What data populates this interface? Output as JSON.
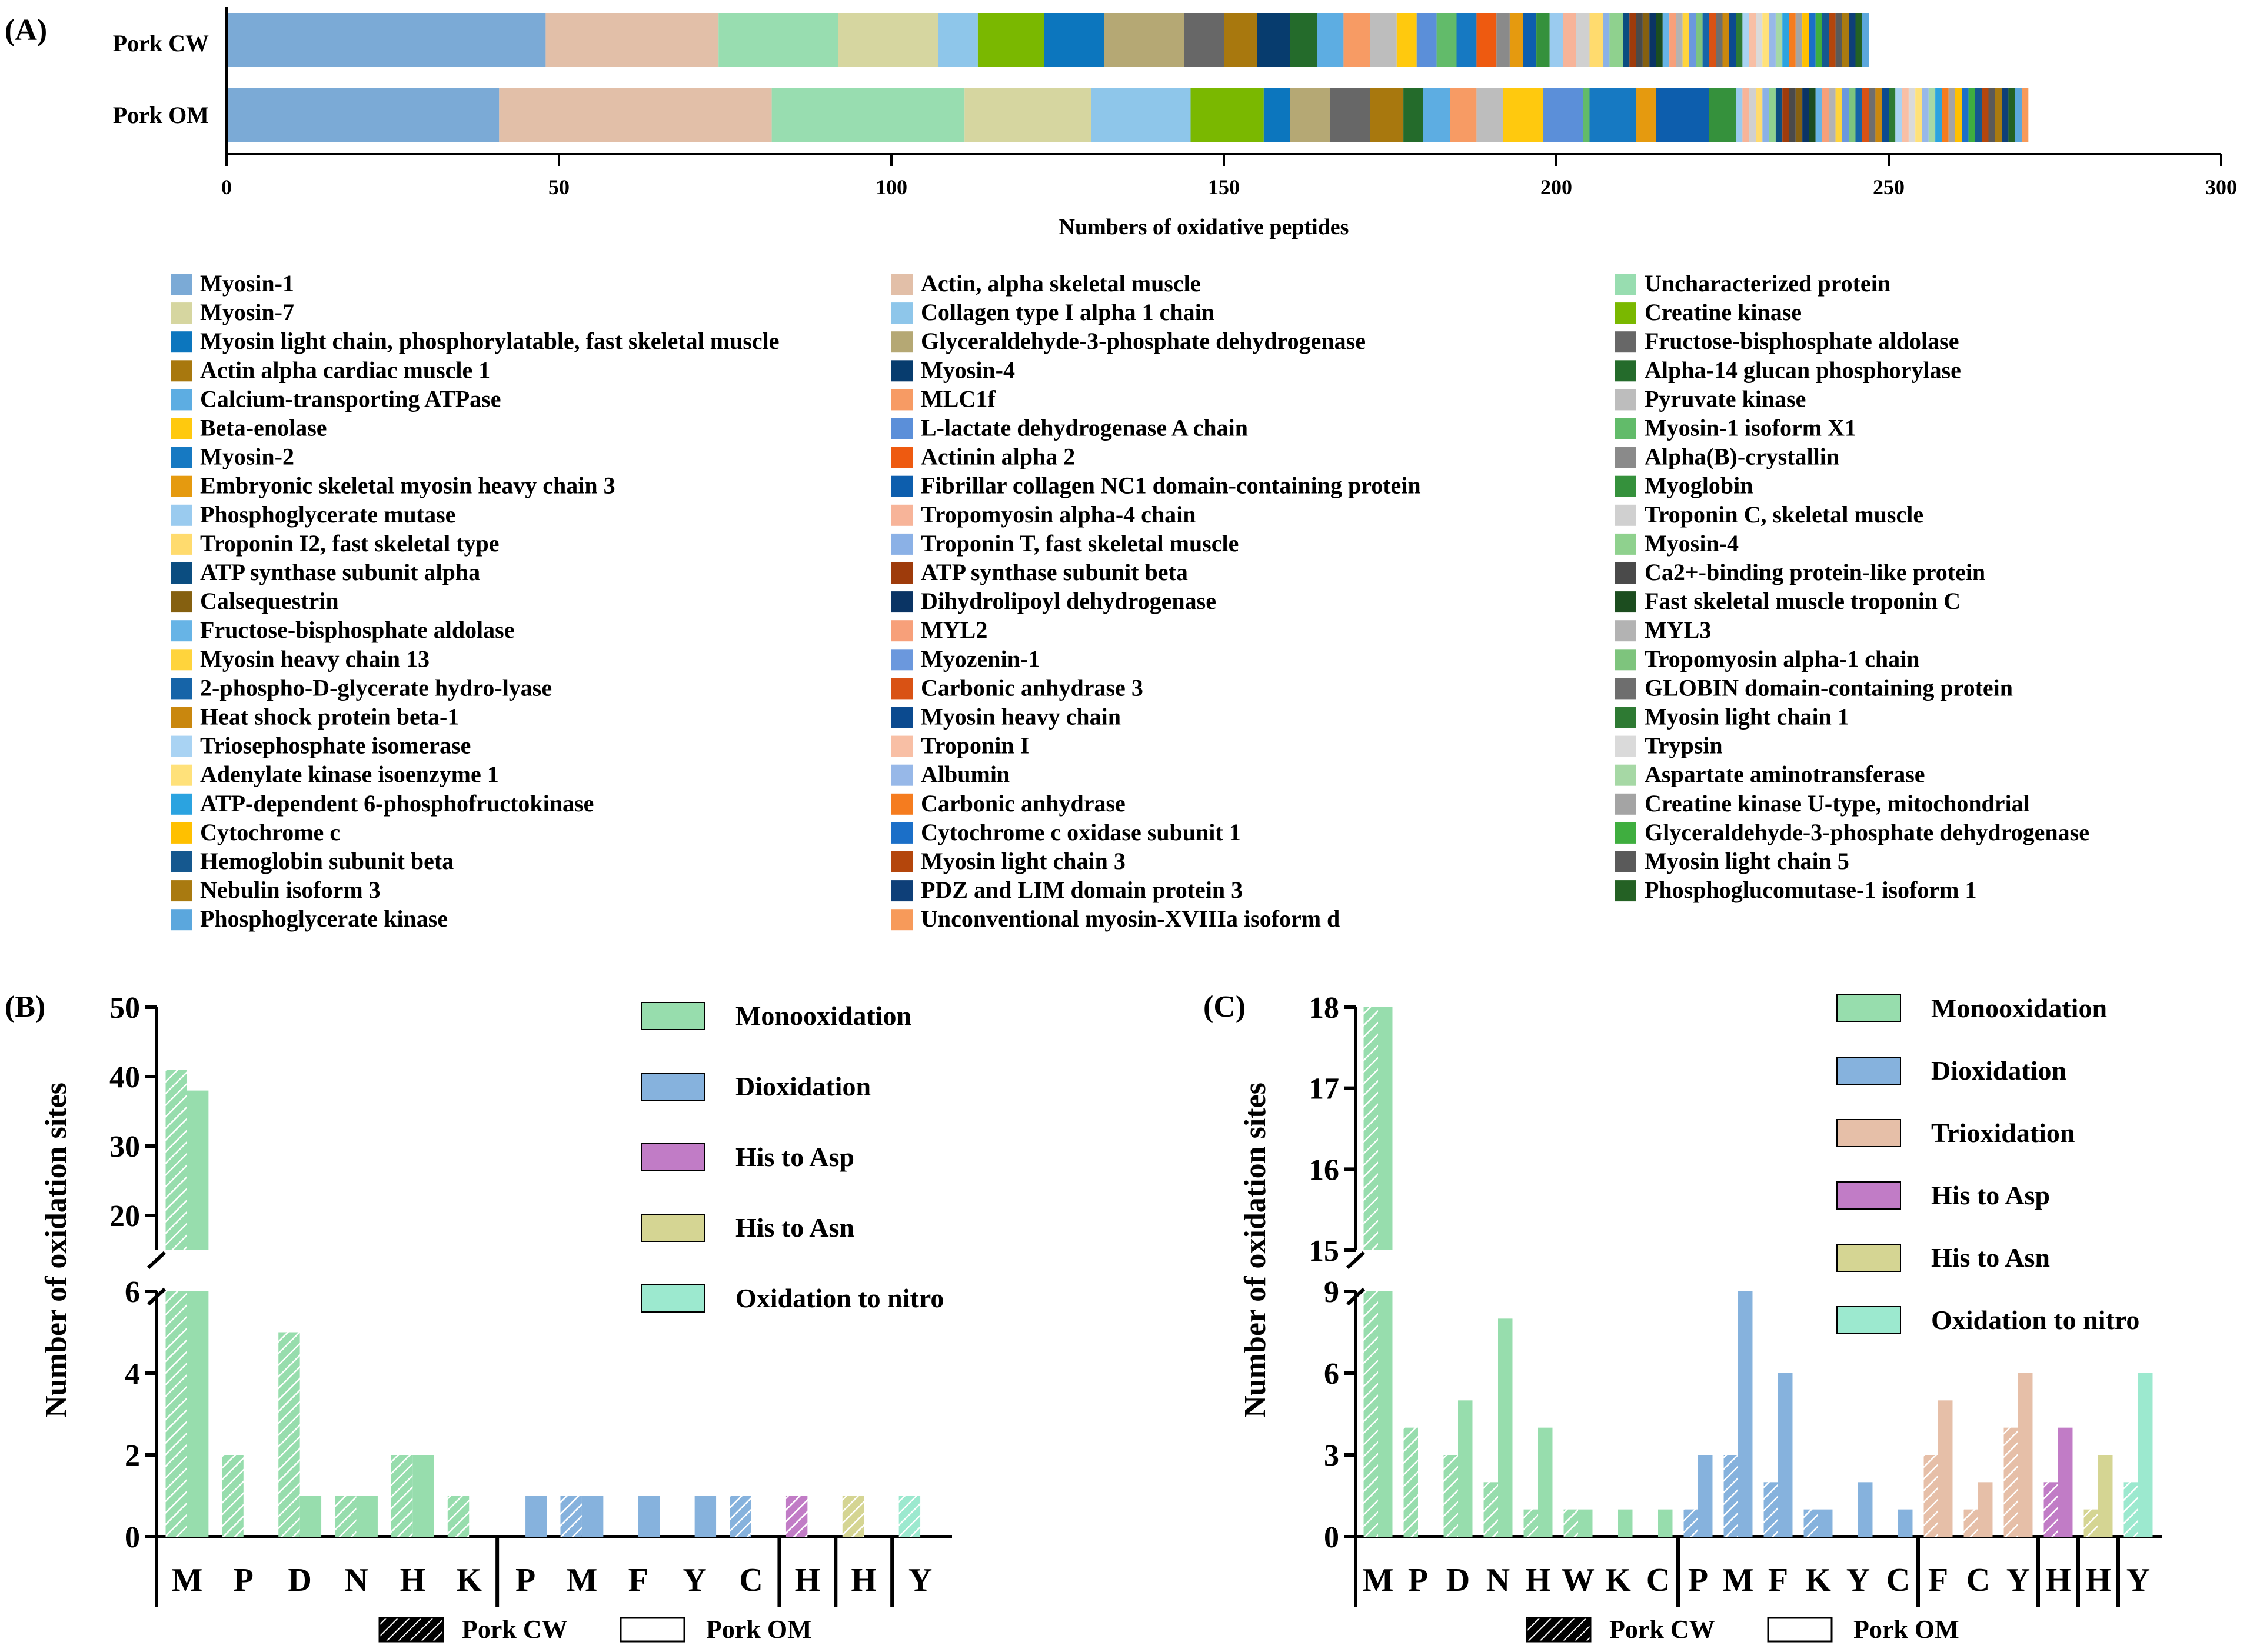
{
  "chart_data": [
    {
      "type": "bar",
      "orientation": "horizontal",
      "stacked": true,
      "panel_label": "(A)",
      "categories": [
        "Pork CW",
        "Pork OM"
      ],
      "xlabel": "Numbers of oxidative peptides",
      "ylabel": "",
      "xlim": [
        0,
        300
      ],
      "xticks": [
        "0",
        "50",
        "100",
        "150",
        "200",
        "250",
        "300"
      ],
      "legend_position": "below",
      "series": [
        {
          "name": "Myosin-1",
          "color": "#7BAAD6",
          "values": [
            48,
            41
          ]
        },
        {
          "name": "Actin, alpha skeletal muscle",
          "color": "#E2BFA8",
          "values": [
            26,
            41
          ]
        },
        {
          "name": "Uncharacterized protein",
          "color": "#98DDB0",
          "values": [
            18,
            29
          ]
        },
        {
          "name": "Myosin-7",
          "color": "#D6D6A0",
          "values": [
            15,
            19
          ]
        },
        {
          "name": "Collagen type I alpha 1 chain",
          "color": "#8EC6EA",
          "values": [
            6,
            15
          ]
        },
        {
          "name": "Creatine kinase",
          "color": "#7AB800",
          "values": [
            10,
            11
          ]
        },
        {
          "name": "Myosin light chain, phosphorylatable, fast skeletal muscle",
          "color": "#0C76BE",
          "values": [
            9,
            4
          ]
        },
        {
          "name": "Glyceraldehyde-3-phosphate dehydrogenase",
          "color": "#B5A874",
          "values": [
            12,
            6
          ]
        },
        {
          "name": "Fructose-bisphosphate aldolase",
          "color": "#676767",
          "values": [
            6,
            6
          ]
        },
        {
          "name": "Actin alpha cardiac muscle 1",
          "color": "#A8780E",
          "values": [
            5,
            5
          ]
        },
        {
          "name": "Myosin-4",
          "color": "#073C6E",
          "values": [
            5,
            0
          ]
        },
        {
          "name": "Alpha-14 glucan phosphorylase",
          "color": "#246B2B",
          "values": [
            4,
            3
          ]
        },
        {
          "name": "Calcium-transporting ATPase",
          "color": "#5DADE2",
          "values": [
            4,
            4
          ]
        },
        {
          "name": "MLC1f",
          "color": "#F79B64",
          "values": [
            4,
            4
          ]
        },
        {
          "name": "Pyruvate kinase",
          "color": "#BDBDBD",
          "values": [
            4,
            4
          ]
        },
        {
          "name": "Beta-enolase",
          "color": "#FFC90E",
          "values": [
            3,
            6
          ]
        },
        {
          "name": "L-lactate dehydrogenase A chain",
          "color": "#5B8FD9",
          "values": [
            3,
            6
          ]
        },
        {
          "name": "Myosin-1 isoform X1",
          "color": "#62BB6A",
          "values": [
            3,
            1
          ]
        },
        {
          "name": "Myosin-2",
          "color": "#1679C2",
          "values": [
            3,
            7
          ]
        },
        {
          "name": "Actinin alpha 2",
          "color": "#EE5A10",
          "values": [
            3,
            0
          ]
        },
        {
          "name": "Alpha(B)-crystallin",
          "color": "#8A8A8A",
          "values": [
            2,
            0
          ]
        },
        {
          "name": "Embryonic skeletal myosin heavy chain 3",
          "color": "#E59A0F",
          "values": [
            2,
            3
          ]
        },
        {
          "name": "Fibrillar collagen NC1 domain-containing protein",
          "color": "#0D5EAD",
          "values": [
            2,
            8
          ]
        },
        {
          "name": "Myoglobin",
          "color": "#35913C",
          "values": [
            2,
            4
          ]
        },
        {
          "name": "Phosphoglycerate mutase",
          "color": "#9ACBEF",
          "values": [
            2,
            1
          ]
        },
        {
          "name": "Tropomyosin alpha-4 chain",
          "color": "#F7B499",
          "values": [
            2,
            1
          ]
        },
        {
          "name": "Troponin C, skeletal muscle",
          "color": "#D0D0D0",
          "values": [
            2,
            1
          ]
        },
        {
          "name": "Troponin I2, fast skeletal type",
          "color": "#FFDB6E",
          "values": [
            2,
            1
          ]
        },
        {
          "name": "Troponin T, fast skeletal muscle",
          "color": "#8BB1E6",
          "values": [
            1,
            1
          ]
        },
        {
          "name": "Myosin-4",
          "color": "#8FD18E",
          "values": [
            2,
            1
          ]
        },
        {
          "name": "ATP synthase subunit alpha",
          "color": "#0B4D80",
          "values": [
            1,
            1
          ]
        },
        {
          "name": "ATP synthase subunit beta",
          "color": "#9E3B0B",
          "values": [
            1,
            1
          ]
        },
        {
          "name": "Ca2+-binding protein-like protein",
          "color": "#4A4A4A",
          "values": [
            1,
            1
          ]
        },
        {
          "name": "Calsequestrin",
          "color": "#856010",
          "values": [
            1,
            1
          ]
        },
        {
          "name": "Dihydrolipoyl dehydrogenase",
          "color": "#0A3464",
          "values": [
            1,
            1
          ]
        },
        {
          "name": "Fast skeletal muscle troponin C",
          "color": "#1C4D1F",
          "values": [
            1,
            1
          ]
        },
        {
          "name": "Fructose-bisphosphate aldolase",
          "color": "#67B4E6",
          "values": [
            1,
            1
          ]
        },
        {
          "name": "MYL2",
          "color": "#F7A07A",
          "values": [
            1,
            1
          ]
        },
        {
          "name": "MYL3",
          "color": "#B3B3B3",
          "values": [
            1,
            1
          ]
        },
        {
          "name": "Myosin heavy chain 13",
          "color": "#FFD43C",
          "values": [
            1,
            1
          ]
        },
        {
          "name": "Myozenin-1",
          "color": "#6B98DD",
          "values": [
            1,
            1
          ]
        },
        {
          "name": "Tropomyosin alpha-1 chain",
          "color": "#7EC47D",
          "values": [
            1,
            1
          ]
        },
        {
          "name": "2-phospho-D-glycerate hydro-lyase",
          "color": "#1664A8",
          "values": [
            1,
            1
          ]
        },
        {
          "name": "Carbonic anhydrase 3",
          "color": "#D95214",
          "values": [
            1,
            1
          ]
        },
        {
          "name": "GLOBIN domain-containing protein",
          "color": "#6E6E6E",
          "values": [
            1,
            1
          ]
        },
        {
          "name": "Heat shock protein beta-1",
          "color": "#C9870E",
          "values": [
            1,
            1
          ]
        },
        {
          "name": "Myosin heavy chain",
          "color": "#0B4A8F",
          "values": [
            1,
            1
          ]
        },
        {
          "name": "Myosin light chain 1",
          "color": "#2E7A33",
          "values": [
            1,
            1
          ]
        },
        {
          "name": "Triosephosphate isomerase",
          "color": "#A9D3F3",
          "values": [
            1,
            1
          ]
        },
        {
          "name": "Troponin I",
          "color": "#F8BFA5",
          "values": [
            1,
            1
          ]
        },
        {
          "name": "Trypsin",
          "color": "#DADADA",
          "values": [
            1,
            1
          ]
        },
        {
          "name": "Adenylate kinase isoenzyme 1",
          "color": "#FFE17A",
          "values": [
            1,
            1
          ]
        },
        {
          "name": "Albumin",
          "color": "#97B8E8",
          "values": [
            1,
            1
          ]
        },
        {
          "name": "Aspartate aminotransferase",
          "color": "#A6D8A5",
          "values": [
            1,
            1
          ]
        },
        {
          "name": "ATP-dependent 6-phosphofructokinase",
          "color": "#2BA3E0",
          "values": [
            1,
            1
          ]
        },
        {
          "name": "Carbonic anhydrase",
          "color": "#F57C1F",
          "values": [
            1,
            1
          ]
        },
        {
          "name": "Creatine kinase U-type, mitochondrial",
          "color": "#A4A4A4",
          "values": [
            1,
            1
          ]
        },
        {
          "name": "Cytochrome c",
          "color": "#FFC000",
          "values": [
            1,
            1
          ]
        },
        {
          "name": "Cytochrome c oxidase subunit 1",
          "color": "#1B6FC8",
          "values": [
            1,
            1
          ]
        },
        {
          "name": "Glyceraldehyde-3-phosphate dehydrogenase",
          "color": "#3FAE3F",
          "values": [
            1,
            1
          ]
        },
        {
          "name": "Hemoglobin subunit beta",
          "color": "#15588F",
          "values": [
            1,
            1
          ]
        },
        {
          "name": "Myosin light chain 3",
          "color": "#B4460C",
          "values": [
            1,
            1
          ]
        },
        {
          "name": "Myosin light chain 5",
          "color": "#5A5A5A",
          "values": [
            1,
            1
          ]
        },
        {
          "name": "Nebulin isoform 3",
          "color": "#A97A10",
          "values": [
            1,
            1
          ]
        },
        {
          "name": "PDZ and LIM domain protein 3",
          "color": "#0E3F78",
          "values": [
            1,
            1
          ]
        },
        {
          "name": "Phosphoglucomutase-1 isoform 1",
          "color": "#246124",
          "values": [
            1,
            1
          ]
        },
        {
          "name": "Phosphoglycerate kinase",
          "color": "#5BA7DD",
          "values": [
            1,
            1
          ]
        },
        {
          "name": "Unconventional myosin-XVIIIa isoform d",
          "color": "#F79A5A",
          "values": [
            0,
            1
          ]
        }
      ]
    },
    {
      "type": "bar",
      "panel_label": "(B)",
      "ylabel": "Number of  oxidation sites",
      "y_break": true,
      "ylim_lower": [
        0,
        6
      ],
      "ylim_upper": [
        15,
        50
      ],
      "yticks_lower": [
        "0",
        "2",
        "4",
        "6"
      ],
      "yticks_upper": [
        "20",
        "30",
        "40",
        "50"
      ],
      "categories": [
        "M",
        "P",
        "D",
        "N",
        "H",
        "K",
        "P",
        "M",
        "F",
        "Y",
        "C",
        "H",
        "H",
        "Y"
      ],
      "category_type": [
        "Monooxidation",
        "Monooxidation",
        "Monooxidation",
        "Monooxidation",
        "Monooxidation",
        "Monooxidation",
        "Dioxidation",
        "Dioxidation",
        "Dioxidation",
        "Dioxidation",
        "Dioxidation",
        "His to Asp",
        "His to Asn",
        "Oxidation to nitro"
      ],
      "group_breaks_after": [
        5,
        10,
        11,
        12
      ],
      "series": [
        {
          "name": "Pork CW",
          "pattern": "hatched",
          "values": [
            41,
            2,
            5,
            1,
            2,
            1,
            0,
            1,
            0,
            0,
            1,
            1,
            1,
            1
          ]
        },
        {
          "name": "Pork OM",
          "pattern": "solid",
          "values": [
            38,
            0,
            1,
            1,
            2,
            0,
            1,
            1,
            1,
            1,
            0,
            0,
            0,
            0
          ]
        }
      ],
      "legend_types": [
        {
          "name": "Monooxidation",
          "color": "#97DDAD"
        },
        {
          "name": "Dioxidation",
          "color": "#86B2DD"
        },
        {
          "name": "His to Asp",
          "color": "#C17CC6"
        },
        {
          "name": "His to Asn",
          "color": "#D5D593"
        },
        {
          "name": "Oxidation to nitro",
          "color": "#9CE9CF"
        }
      ],
      "legend_samples": [
        "Pork CW",
        "Pork OM"
      ]
    },
    {
      "type": "bar",
      "panel_label": "(C)",
      "ylabel": "Number of  oxidation sites",
      "y_break": true,
      "ylim_lower": [
        0,
        9
      ],
      "ylim_upper": [
        15,
        18
      ],
      "yticks_lower": [
        "0",
        "3",
        "6",
        "9"
      ],
      "yticks_upper": [
        "15",
        "16",
        "17",
        "18"
      ],
      "categories": [
        "M",
        "P",
        "D",
        "N",
        "H",
        "W",
        "K",
        "C",
        "P",
        "M",
        "F",
        "K",
        "Y",
        "C",
        "F",
        "C",
        "Y",
        "H",
        "H",
        "Y"
      ],
      "category_type": [
        "Monooxidation",
        "Monooxidation",
        "Monooxidation",
        "Monooxidation",
        "Monooxidation",
        "Monooxidation",
        "Monooxidation",
        "Monooxidation",
        "Dioxidation",
        "Dioxidation",
        "Dioxidation",
        "Dioxidation",
        "Dioxidation",
        "Dioxidation",
        "Trioxidation",
        "Trioxidation",
        "Trioxidation",
        "His to Asp",
        "His to Asn",
        "Oxidation to nitro"
      ],
      "group_breaks_after": [
        7,
        13,
        16,
        17,
        18
      ],
      "series": [
        {
          "name": "Pork CW",
          "pattern": "hatched",
          "values": [
            18,
            4,
            3,
            2,
            1,
            1,
            0,
            0,
            1,
            3,
            2,
            1,
            0,
            0,
            3,
            1,
            4,
            2,
            1,
            2
          ]
        },
        {
          "name": "Pork OM",
          "pattern": "solid",
          "values": [
            18,
            0,
            5,
            8,
            4,
            1,
            1,
            1,
            3,
            9,
            6,
            1,
            2,
            1,
            5,
            2,
            6,
            4,
            3,
            6
          ]
        }
      ],
      "legend_types": [
        {
          "name": "Monooxidation",
          "color": "#97DDAD"
        },
        {
          "name": "Dioxidation",
          "color": "#86B2DD"
        },
        {
          "name": "Trioxidation",
          "color": "#E6BFA8"
        },
        {
          "name": "His to Asp",
          "color": "#C17CC6"
        },
        {
          "name": "His to Asn",
          "color": "#D5D593"
        },
        {
          "name": "Oxidation to nitro",
          "color": "#9CE9CF"
        }
      ],
      "legend_samples": [
        "Pork CW",
        "Pork OM"
      ]
    }
  ]
}
